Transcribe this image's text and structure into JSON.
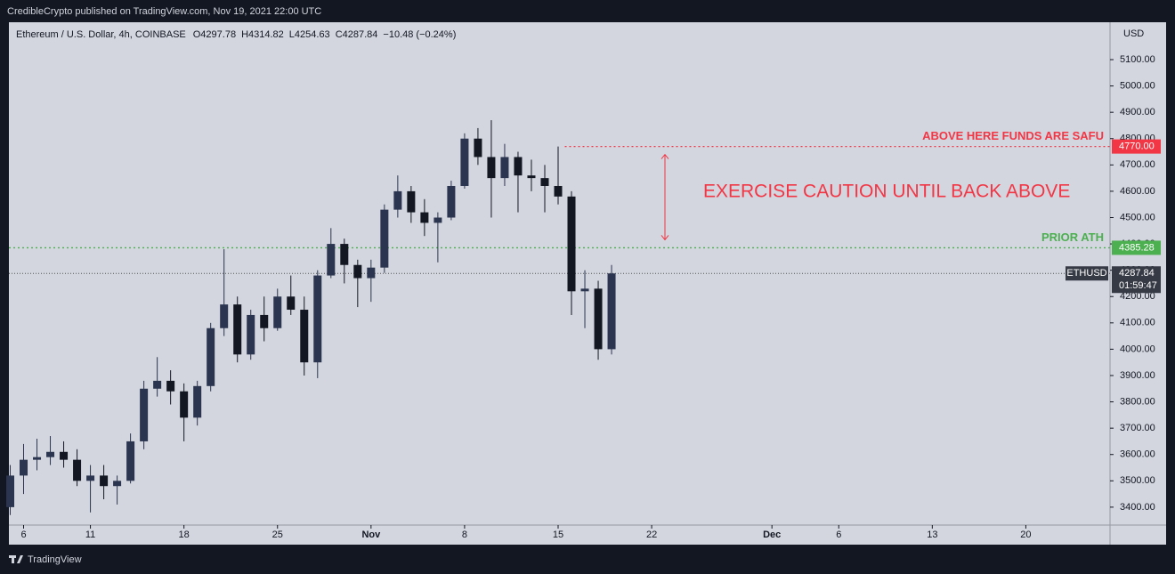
{
  "header": {
    "publisher": "CredibleCrypto published on TradingView.com, Nov 19, 2021 22:00 UTC",
    "brand": "TradingView"
  },
  "chart_data": {
    "type": "candlestick",
    "legend_symbol": "Ethereum / U.S. Dollar, 4h, COINBASE",
    "legend_values": [
      "O4297.78",
      "H4314.82",
      "L4254.63",
      "C4287.84",
      "−10.48 (−0.24%)"
    ],
    "currency": "USD",
    "x": [
      5,
      6,
      7,
      8,
      9,
      10,
      11,
      12,
      13,
      14,
      15,
      16,
      17,
      18,
      19,
      20,
      21,
      22,
      23,
      24,
      25,
      26,
      27,
      28,
      29,
      30,
      31,
      32,
      33,
      34,
      35,
      36,
      37,
      38,
      39,
      40,
      41,
      42,
      43,
      44,
      45,
      46,
      47,
      48,
      49,
      50
    ],
    "open": [
      3400,
      3520,
      3580,
      3590,
      3610,
      3580,
      3500,
      3520,
      3480,
      3500,
      3650,
      3850,
      3880,
      3840,
      3740,
      3860,
      4080,
      4170,
      3980,
      4130,
      4080,
      4200,
      4150,
      3950,
      4280,
      4400,
      4320,
      4270,
      4310,
      4530,
      4600,
      4520,
      4480,
      4500,
      4620,
      4800,
      4730,
      4650,
      4730,
      4660,
      4650,
      4620,
      4580,
      4220,
      4230,
      4000
    ],
    "high": [
      3560,
      3640,
      3660,
      3670,
      3650,
      3620,
      3560,
      3560,
      3520,
      3680,
      3880,
      3970,
      3920,
      3870,
      3880,
      4100,
      4380,
      4200,
      4150,
      4200,
      4230,
      4280,
      4200,
      4300,
      4460,
      4420,
      4340,
      4340,
      4550,
      4660,
      4620,
      4570,
      4520,
      4640,
      4820,
      4840,
      4870,
      4780,
      4750,
      4720,
      4700,
      4770,
      4600,
      4300,
      4260,
      4320
    ],
    "low": [
      3370,
      3450,
      3540,
      3560,
      3550,
      3480,
      3380,
      3430,
      3410,
      3490,
      3620,
      3820,
      3790,
      3650,
      3710,
      3840,
      4050,
      3950,
      3960,
      4030,
      4070,
      4130,
      3900,
      3890,
      4270,
      4250,
      4160,
      4180,
      4290,
      4500,
      4480,
      4430,
      4330,
      4490,
      4610,
      4700,
      4500,
      4620,
      4520,
      4600,
      4520,
      4550,
      4130,
      4080,
      3960,
      3980
    ],
    "close": [
      3520,
      3580,
      3590,
      3610,
      3580,
      3500,
      3520,
      3480,
      3500,
      3650,
      3850,
      3880,
      3840,
      3740,
      3860,
      4080,
      4170,
      3980,
      4130,
      4080,
      4200,
      4150,
      3950,
      4280,
      4400,
      4320,
      4270,
      4310,
      4530,
      4600,
      4520,
      4480,
      4500,
      4620,
      4800,
      4730,
      4650,
      4730,
      4660,
      4650,
      4620,
      4580,
      4220,
      4230,
      4000,
      4287.84
    ],
    "up_color": "#2b3550",
    "down_color": "#131722",
    "xlim": [
      4.9,
      87.3
    ],
    "xticks": [
      {
        "value": 6,
        "label": "6"
      },
      {
        "value": 11,
        "label": "11"
      },
      {
        "value": 18,
        "label": "18"
      },
      {
        "value": 25,
        "label": "25"
      },
      {
        "value": 32,
        "label": "Nov"
      },
      {
        "value": 39,
        "label": "8"
      },
      {
        "value": 46,
        "label": "15"
      },
      {
        "value": 53,
        "label": "22"
      },
      {
        "value": 62,
        "label": "Dec"
      },
      {
        "value": 67,
        "label": "6"
      },
      {
        "value": 74,
        "label": "13"
      },
      {
        "value": 81,
        "label": "20"
      }
    ],
    "ylim": [
      3332,
      5242
    ],
    "yticks": [
      {
        "value": 3400,
        "label": "3400.00"
      },
      {
        "value": 3500,
        "label": "3500.00"
      },
      {
        "value": 3600,
        "label": "3600.00"
      },
      {
        "value": 3700,
        "label": "3700.00"
      },
      {
        "value": 3800,
        "label": "3800.00"
      },
      {
        "value": 3900,
        "label": "3900.00"
      },
      {
        "value": 4000,
        "label": "4000.00"
      },
      {
        "value": 4100,
        "label": "4100.00"
      },
      {
        "value": 4200,
        "label": "4200.00"
      },
      {
        "value": 4300,
        "label": "4300.00"
      },
      {
        "value": 4400,
        "label": "4400.00"
      },
      {
        "value": 4500,
        "label": "4500.00"
      },
      {
        "value": 4600,
        "label": "4600.00"
      },
      {
        "value": 4700,
        "label": "4700.00"
      },
      {
        "value": 4800,
        "label": "4800.00"
      },
      {
        "value": 4900,
        "label": "4900.00"
      },
      {
        "value": 5000,
        "label": "5000.00"
      },
      {
        "value": 5100,
        "label": "5100.00"
      }
    ],
    "levels": [
      {
        "value": 4770,
        "label": "4770.00",
        "text": "ABOVE HERE FUNDS ARE SAFU",
        "color": "#f23645",
        "x_start": 46.5
      },
      {
        "value": 4385.28,
        "label": "4385.28",
        "text": "PRIOR ATH",
        "color": "#4caf50",
        "x_start": 4.9
      }
    ],
    "last_price": {
      "value": 4287.84,
      "label": "4287.84",
      "symbol": "ETHUSD",
      "countdown": "01:59:47"
    },
    "annotation": "EXERCISE CAUTION UNTIL BACK ABOVE"
  }
}
